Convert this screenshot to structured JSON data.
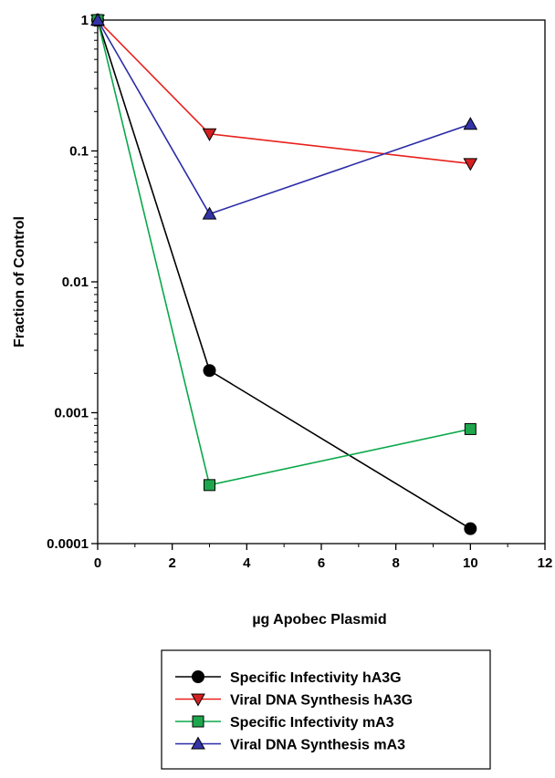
{
  "chart_data": {
    "type": "line",
    "title": "",
    "xlabel": "µg Apobec Plasmid",
    "ylabel": "Fraction of Control",
    "xlim": [
      0,
      12
    ],
    "ylim": [
      0.0001,
      1
    ],
    "yscale": "log",
    "grid": false,
    "legend_position": "bottom",
    "x_ticks": [
      "0",
      "2",
      "4",
      "6",
      "8",
      "10",
      "12"
    ],
    "y_ticks": [
      "0.0001",
      "0.001",
      "0.01",
      "0.1",
      "1"
    ],
    "series": [
      {
        "name": "Specific Infectivity hA3G",
        "marker": "circle",
        "color": "#000000",
        "fill": "#000000",
        "x": [
          0,
          3,
          10
        ],
        "y": [
          1,
          0.0021,
          0.00013
        ]
      },
      {
        "name": "Viral DNA Synthesis hA3G",
        "marker": "triangle-down",
        "color": "#e8201c",
        "fill": "#d42020",
        "x": [
          0,
          3,
          10
        ],
        "y": [
          1,
          0.135,
          0.08
        ]
      },
      {
        "name": "Specific Infectivity mA3",
        "marker": "square",
        "color": "#0aa84a",
        "fill": "#1ea64c",
        "x": [
          0,
          3,
          10
        ],
        "y": [
          1,
          0.00028,
          0.00075
        ]
      },
      {
        "name": "Viral DNA Synthesis mA3",
        "marker": "triangle-up",
        "color": "#2b2ba8",
        "fill": "#3434a8",
        "x": [
          0,
          3,
          10
        ],
        "y": [
          1,
          0.033,
          0.16
        ]
      }
    ]
  }
}
